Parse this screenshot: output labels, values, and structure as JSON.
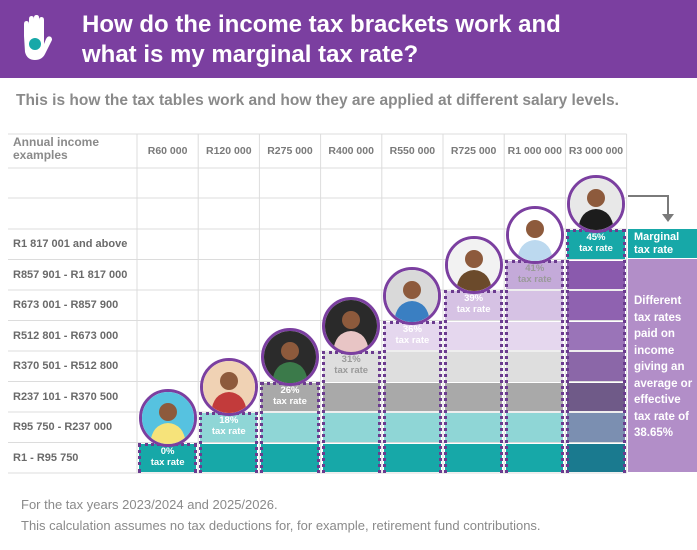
{
  "header": {
    "title_line1": "How do the income tax brackets work and",
    "title_line2": "what is my marginal tax rate?",
    "logo_icon": "hand-icon"
  },
  "subtitle": "This is how the tax tables work and how they are applied at different salary levels.",
  "table": {
    "header_label": "Annual income examples",
    "columns": [
      "R60 000",
      "R120 000",
      "R275 000",
      "R400 000",
      "R550 000",
      "R725 000",
      "R1 000 000",
      "R3 000 000"
    ],
    "rows": [
      "R1 817 001 and above",
      "R857 901 - R1 817 000",
      "R673 001 - R857 900",
      "R512 801 - R673 000",
      "R370 501 - R512 800",
      "R237 101 - R370 500",
      "R95 750 - R237 000",
      "R1 - R95 750"
    ],
    "rates": [
      {
        "pct": "0%",
        "label": "tax rate"
      },
      {
        "pct": "18%",
        "label": "tax rate"
      },
      {
        "pct": "26%",
        "label": "tax rate"
      },
      {
        "pct": "31%",
        "label": "tax rate"
      },
      {
        "pct": "36%",
        "label": "tax rate"
      },
      {
        "pct": "39%",
        "label": "tax rate"
      },
      {
        "pct": "41%",
        "label": "tax rate"
      },
      {
        "pct": "45%",
        "label": "tax rate"
      }
    ],
    "band_colors": [
      "#17a8a8",
      "#7ed3d3",
      "#a7a7a7",
      "#d9d9d9",
      "#e6d5ee",
      "#d3bfe1",
      "#c3a9d6",
      "#17a8a8"
    ]
  },
  "marginal_label": "Marginal tax rate",
  "different_label": "Different tax rates paid on income giving an average or effective tax rate of 38.65%",
  "footer": {
    "line1": "For the tax years 2023/2024 and 2025/2026.",
    "line2": "This calculation assumes no tax deductions for, for example, retirement fund contributions."
  }
}
